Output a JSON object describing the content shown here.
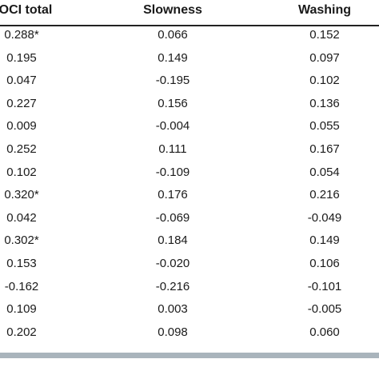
{
  "table": {
    "columns": [
      "OCI total",
      "Slowness",
      "Washing"
    ],
    "rows": [
      [
        "0.288*",
        "0.066",
        "0.152"
      ],
      [
        "0.195",
        "0.149",
        "0.097"
      ],
      [
        "0.047",
        "-0.195",
        "0.102"
      ],
      [
        "0.227",
        "0.156",
        "0.136"
      ],
      [
        "0.009",
        "-0.004",
        "0.055"
      ],
      [
        "0.252",
        "0.111",
        "0.167"
      ],
      [
        "0.102",
        "-0.109",
        "0.054"
      ],
      [
        "0.320*",
        "0.176",
        "0.216"
      ],
      [
        "0.042",
        "-0.069",
        "-0.049"
      ],
      [
        "0.302*",
        "0.184",
        "0.149"
      ],
      [
        "0.153",
        "-0.020",
        "0.106"
      ],
      [
        "-0.162",
        "-0.216",
        "-0.101"
      ],
      [
        "0.109",
        "0.003",
        "-0.005"
      ],
      [
        "0.202",
        "0.098",
        "0.060"
      ]
    ]
  }
}
